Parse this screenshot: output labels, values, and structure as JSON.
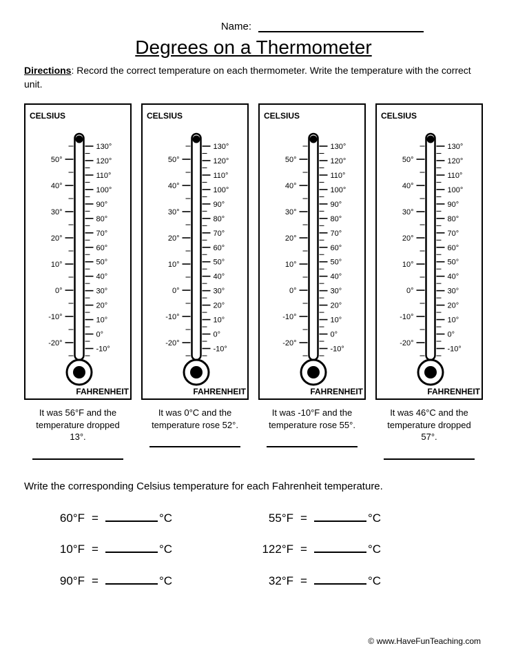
{
  "header": {
    "name_label": "Name:",
    "title": "Degrees on a Thermometer",
    "directions_label": "Directions",
    "directions_text": ":  Record the correct temperature on each thermometer.  Write the temperature with the correct unit."
  },
  "thermometer": {
    "celsius_label": "CELSIUS",
    "fahrenheit_label": "FAHRENHEIT",
    "celsius_ticks": [
      "50°",
      "40°",
      "30°",
      "20°",
      "10°",
      "0°",
      "-10°",
      "-20°"
    ],
    "fahrenheit_ticks": [
      "130°",
      "120°",
      "110°",
      "100°",
      "90°",
      "80°",
      "70°",
      "60°",
      "50°",
      "40°",
      "30°",
      "20°",
      "10°",
      "0°",
      "-10°"
    ],
    "celsius_range": [
      -25,
      55
    ],
    "fahrenheit_range": [
      -10,
      130
    ],
    "colors": {
      "stroke": "#000000",
      "fill": "#000000",
      "bg": "#ffffff"
    }
  },
  "prompts": [
    "It was 56°F and the temperature dropped 13°.",
    "It was 0°C and the temperature rose 52°.",
    "It was -10°F and the temperature rose 55°.",
    "It was 46°C and the temperature dropped 57°."
  ],
  "section2": {
    "instruction": "Write the corresponding Celsius temperature for each Fahrenheit temperature.",
    "left": [
      {
        "f": "60°F",
        "c": "°C"
      },
      {
        "f": "10°F",
        "c": "°C"
      },
      {
        "f": "90°F",
        "c": "°C"
      }
    ],
    "right": [
      {
        "f": "55°F",
        "c": "°C"
      },
      {
        "f": "122°F",
        "c": "°C"
      },
      {
        "f": "32°F",
        "c": "°C"
      }
    ]
  },
  "footer": "© www.HaveFunTeaching.com"
}
